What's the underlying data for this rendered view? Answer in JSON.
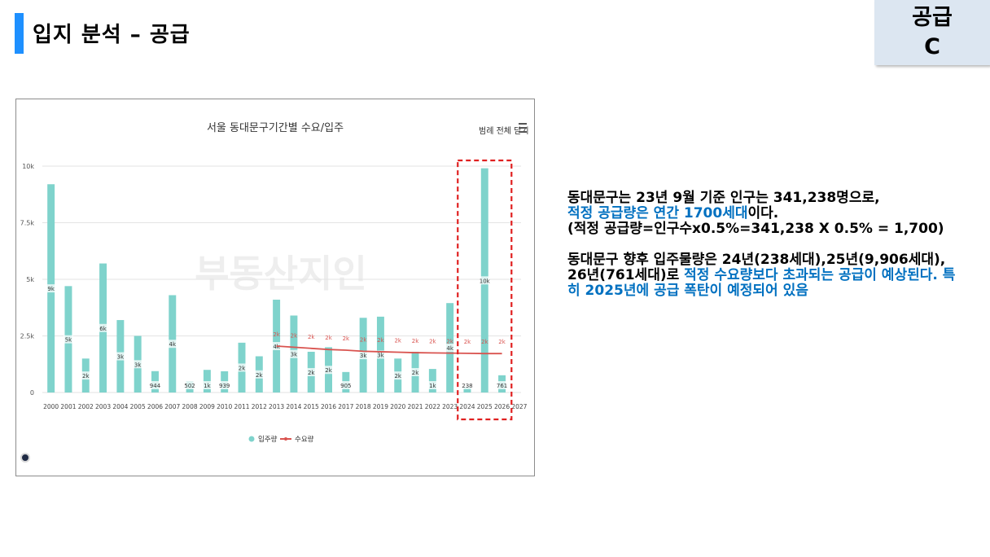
{
  "slide": {
    "title": "입지 분석 – 공급",
    "badge_line1": "공급",
    "badge_line2": "C"
  },
  "chart_controls": {
    "legend_toggle": "범례 전체 닫기",
    "menu_icon": "hamburger-menu-icon",
    "logo_icon": "site-logo-icon"
  },
  "text": {
    "p1_line1": "동대문구는 23년 9월 기준 인구는 341,238명으로,",
    "p1_highlight": "적정 공급량은 연간 1700세대",
    "p1_after": "이다.",
    "p1_formula": "(적정 공급량=인구수x0.5%=341,238 X 0.5% = 1,700)",
    "p2_line": "동대문구 향후 입주물량은 24년(238세대),25년(9,906세대), 26년(761세대)로",
    "p2_highlight": "적정 수요량보다 초과되는 공급이 예상된다. 특히 2025년에 공급 폭탄이 예정되어 있음"
  },
  "chart_data": {
    "type": "bar",
    "title": "서울 동대문구기간별 수요/입주",
    "watermark": "부동산지인",
    "categories": [
      "2000",
      "2001",
      "2002",
      "2003",
      "2004",
      "2005",
      "2006",
      "2007",
      "2008",
      "2009",
      "2010",
      "2011",
      "2012",
      "2013",
      "2014",
      "2015",
      "2016",
      "2017",
      "2018",
      "2019",
      "2020",
      "2021",
      "2022",
      "2023",
      "2024",
      "2025",
      "2026",
      "2027"
    ],
    "ylim": [
      0,
      10000
    ],
    "yticks": [
      "0",
      "2.5k",
      "5k",
      "7.5k",
      "10k"
    ],
    "grid": true,
    "legend": "bottom",
    "series": [
      {
        "name": "입주량",
        "type": "bar",
        "color": "#7fd3cc",
        "values": [
          9200,
          4700,
          1500,
          5700,
          3200,
          2500,
          944,
          4300,
          502,
          1000,
          939,
          2200,
          1600,
          4100,
          3400,
          1800,
          2000,
          905,
          3300,
          3350,
          1500,
          1800,
          1040,
          3950,
          238,
          9906,
          761,
          null
        ],
        "labels": [
          "9k",
          "5k",
          "2k",
          "6k",
          "3k",
          "3k",
          "944",
          "4k",
          "502",
          "1k",
          "939",
          "2k",
          "2k",
          "4k",
          "3k",
          "2k",
          "2k",
          "905",
          "3k",
          "3k",
          "2k",
          "2k",
          "1k",
          "4k",
          "238",
          "10k",
          "761",
          ""
        ]
      },
      {
        "name": "수요량",
        "type": "line",
        "color": "#d9534f",
        "values": [
          null,
          null,
          null,
          null,
          null,
          null,
          null,
          null,
          null,
          null,
          null,
          null,
          null,
          2050,
          2000,
          1950,
          1900,
          1870,
          1820,
          1800,
          1780,
          1760,
          1750,
          1740,
          1730,
          1720,
          1720,
          null
        ],
        "labels": [
          "",
          "",
          "",
          "",
          "",
          "",
          "",
          "",
          "",
          "",
          "",
          "",
          "",
          "2k",
          "2k",
          "2k",
          "2k",
          "2k",
          "2k",
          "2k",
          "2k",
          "2k",
          "2k",
          "2k",
          "2k",
          "2k",
          "2k",
          ""
        ]
      }
    ],
    "annotation": {
      "type": "dashed-box",
      "color": "#e02020",
      "categories": [
        "2024",
        "2025",
        "2026"
      ]
    }
  }
}
